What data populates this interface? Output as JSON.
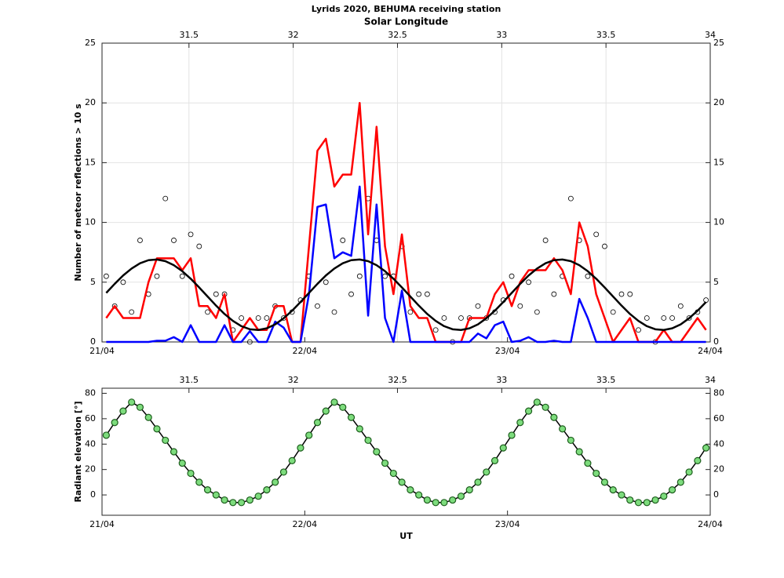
{
  "chart_data": [
    {
      "type": "line",
      "title": "Lyrids 2020, BEHUMA receiving station",
      "x2label": "Solar Longitude",
      "ylabel": "Number of meteor reflections > 10 s",
      "x": [
        0.5,
        1.5,
        2.5,
        3.5,
        4.5,
        5.5,
        6.5,
        7.5,
        8.5,
        9.5,
        10.5,
        11.5,
        12.5,
        13.5,
        14.5,
        15.5,
        16.5,
        17.5,
        18.5,
        19.5,
        20.5,
        21.5,
        22.5,
        23.5,
        24.5,
        25.5,
        26.5,
        27.5,
        28.5,
        29.5,
        30.5,
        31.5,
        32.5,
        33.5,
        34.5,
        35.5,
        36.5,
        37.5,
        38.5,
        39.5,
        40.5,
        41.5,
        42.5,
        43.5,
        44.5,
        45.5,
        46.5,
        47.5,
        48.5,
        49.5,
        50.5,
        51.5,
        52.5,
        53.5,
        54.5,
        55.5,
        56.5,
        57.5,
        58.5,
        59.5,
        60.5,
        61.5,
        62.5,
        63.5,
        64.5,
        65.5,
        66.5,
        67.5,
        68.5,
        69.5,
        70.5,
        71.5
      ],
      "series": [
        {
          "style": "markers",
          "color": "#000000",
          "values": [
            5.5,
            3,
            5,
            2.5,
            8.5,
            4,
            5.5,
            12,
            8.5,
            5.5,
            9,
            8,
            2.5,
            4,
            4,
            1,
            2,
            0,
            2,
            2,
            3,
            2,
            2.5,
            3.5,
            5.5,
            3,
            5,
            2.5,
            8.5,
            4,
            5.5,
            12,
            8.5,
            5.5,
            5.5,
            8,
            2.5,
            4,
            4,
            1,
            2,
            0,
            2,
            2,
            3,
            2,
            2.5,
            3.5,
            5.5,
            3,
            5,
            2.5,
            8.5,
            4,
            5.5,
            12,
            8.5,
            5.5,
            9,
            8,
            2.5,
            4,
            4,
            1,
            2,
            0,
            2,
            2,
            3,
            2,
            2.5,
            3.5
          ]
        },
        {
          "style": "line",
          "color": "#ff0000",
          "values": [
            2,
            3,
            2,
            2,
            2,
            5,
            7,
            7,
            7,
            6,
            7,
            3,
            3,
            2,
            4,
            0,
            1,
            2,
            1,
            1,
            3,
            3,
            0,
            0,
            8,
            16,
            17,
            13,
            14,
            14,
            20,
            9,
            18,
            8,
            4,
            9,
            3,
            2,
            2,
            0,
            0,
            0,
            0,
            2,
            2,
            2,
            4,
            5,
            3,
            5,
            6,
            6,
            6,
            7,
            6,
            4,
            10,
            8,
            4,
            2,
            0,
            1,
            2,
            0,
            0,
            0,
            1,
            0,
            0,
            1,
            2,
            1
          ]
        },
        {
          "style": "line",
          "color": "#0000ff",
          "values": [
            0,
            0,
            0,
            0,
            0,
            0,
            0.1,
            0.1,
            0.4,
            0,
            1.4,
            0,
            0,
            0,
            1.4,
            0,
            0,
            0.9,
            0,
            0,
            1.7,
            1.2,
            0,
            0,
            4,
            11.3,
            11.5,
            7,
            7.5,
            7.2,
            13,
            2.2,
            11.5,
            2,
            0,
            4.3,
            0,
            0,
            0,
            0,
            0,
            0,
            0,
            0,
            0.7,
            0.3,
            1.4,
            1.7,
            0,
            0.1,
            0.4,
            0,
            0,
            0.1,
            0,
            0,
            3.6,
            2,
            0,
            0,
            0,
            0,
            0,
            0,
            0,
            0,
            0,
            0,
            0,
            0,
            0,
            0
          ]
        },
        {
          "style": "line",
          "color": "#000000",
          "values": [
            4.1,
            4.86,
            5.56,
            6.14,
            6.58,
            6.84,
            6.9,
            6.76,
            6.42,
            5.92,
            5.29,
            4.56,
            3.8,
            3.04,
            2.34,
            1.76,
            1.32,
            1.06,
            1.0,
            1.14,
            1.47,
            1.98,
            2.61,
            3.34,
            4.1,
            4.86,
            5.56,
            6.14,
            6.58,
            6.84,
            6.9,
            6.76,
            6.42,
            5.92,
            5.29,
            4.56,
            3.8,
            3.04,
            2.34,
            1.76,
            1.32,
            1.06,
            1.0,
            1.14,
            1.47,
            1.98,
            2.61,
            3.34,
            4.1,
            4.86,
            5.56,
            6.14,
            6.58,
            6.84,
            6.9,
            6.76,
            6.42,
            5.92,
            5.29,
            4.56,
            3.8,
            3.04,
            2.34,
            1.76,
            1.32,
            1.06,
            1.0,
            1.14,
            1.47,
            1.98,
            2.61,
            3.34
          ]
        }
      ],
      "xlim": [
        0,
        72
      ],
      "xticks": [
        {
          "value": 0,
          "label": "21/04"
        },
        {
          "value": 24,
          "label": "22/04"
        },
        {
          "value": 48,
          "label": "23/04"
        },
        {
          "value": 72,
          "label": "24/04"
        }
      ],
      "x2lim": [
        31.083,
        34
      ],
      "x2ticks": [
        31.5,
        32,
        32.5,
        33,
        33.5,
        34
      ],
      "ylim": [
        0,
        25
      ],
      "yticks": [
        0,
        5,
        10,
        15,
        20,
        25
      ],
      "grid": true
    },
    {
      "type": "line",
      "ylabel": "Radiant elevation [°]",
      "xlabel": "UT",
      "x": [
        0.5,
        1.5,
        2.5,
        3.5,
        4.5,
        5.5,
        6.5,
        7.5,
        8.5,
        9.5,
        10.5,
        11.5,
        12.5,
        13.5,
        14.5,
        15.5,
        16.5,
        17.5,
        18.5,
        19.5,
        20.5,
        21.5,
        22.5,
        23.5,
        24.5,
        25.5,
        26.5,
        27.5,
        28.5,
        29.5,
        30.5,
        31.5,
        32.5,
        33.5,
        34.5,
        35.5,
        36.5,
        37.5,
        38.5,
        39.5,
        40.5,
        41.5,
        42.5,
        43.5,
        44.5,
        45.5,
        46.5,
        47.5,
        48.5,
        49.5,
        50.5,
        51.5,
        52.5,
        53.5,
        54.5,
        55.5,
        56.5,
        57.5,
        58.5,
        59.5,
        60.5,
        61.5,
        62.5,
        63.5,
        64.5,
        65.5,
        66.5,
        67.5,
        68.5,
        69.5,
        70.5,
        71.5
      ],
      "series": [
        {
          "style": "line+markers",
          "color": "#000000",
          "marker_color": "#7ddc7d",
          "values": [
            47,
            57,
            66,
            73,
            69,
            61,
            52,
            43,
            34,
            25,
            17,
            10,
            4,
            0,
            -4,
            -6,
            -6,
            -4,
            -1,
            4,
            10,
            18,
            27,
            37,
            47,
            57,
            66,
            73,
            69,
            61,
            52,
            43,
            34,
            25,
            17,
            10,
            4,
            0,
            -4,
            -6,
            -6,
            -4,
            -1,
            4,
            10,
            18,
            27,
            37,
            47,
            57,
            66,
            73,
            69,
            61,
            52,
            43,
            34,
            25,
            17,
            10,
            4,
            0,
            -4,
            -6,
            -6,
            -4,
            -1,
            4,
            10,
            18,
            27,
            37
          ]
        }
      ],
      "xlim": [
        0,
        72
      ],
      "xticks": [
        {
          "value": 0,
          "label": "21/04"
        },
        {
          "value": 24,
          "label": "22/04"
        },
        {
          "value": 48,
          "label": "23/04"
        },
        {
          "value": 72,
          "label": "24/04"
        }
      ],
      "x2lim": [
        31.083,
        34
      ],
      "x2ticks": [
        31.5,
        32,
        32.5,
        33,
        33.5,
        34
      ],
      "ylim": [
        -16,
        84
      ],
      "yticks": [
        0,
        20,
        40,
        60,
        80
      ],
      "grid": false
    }
  ]
}
